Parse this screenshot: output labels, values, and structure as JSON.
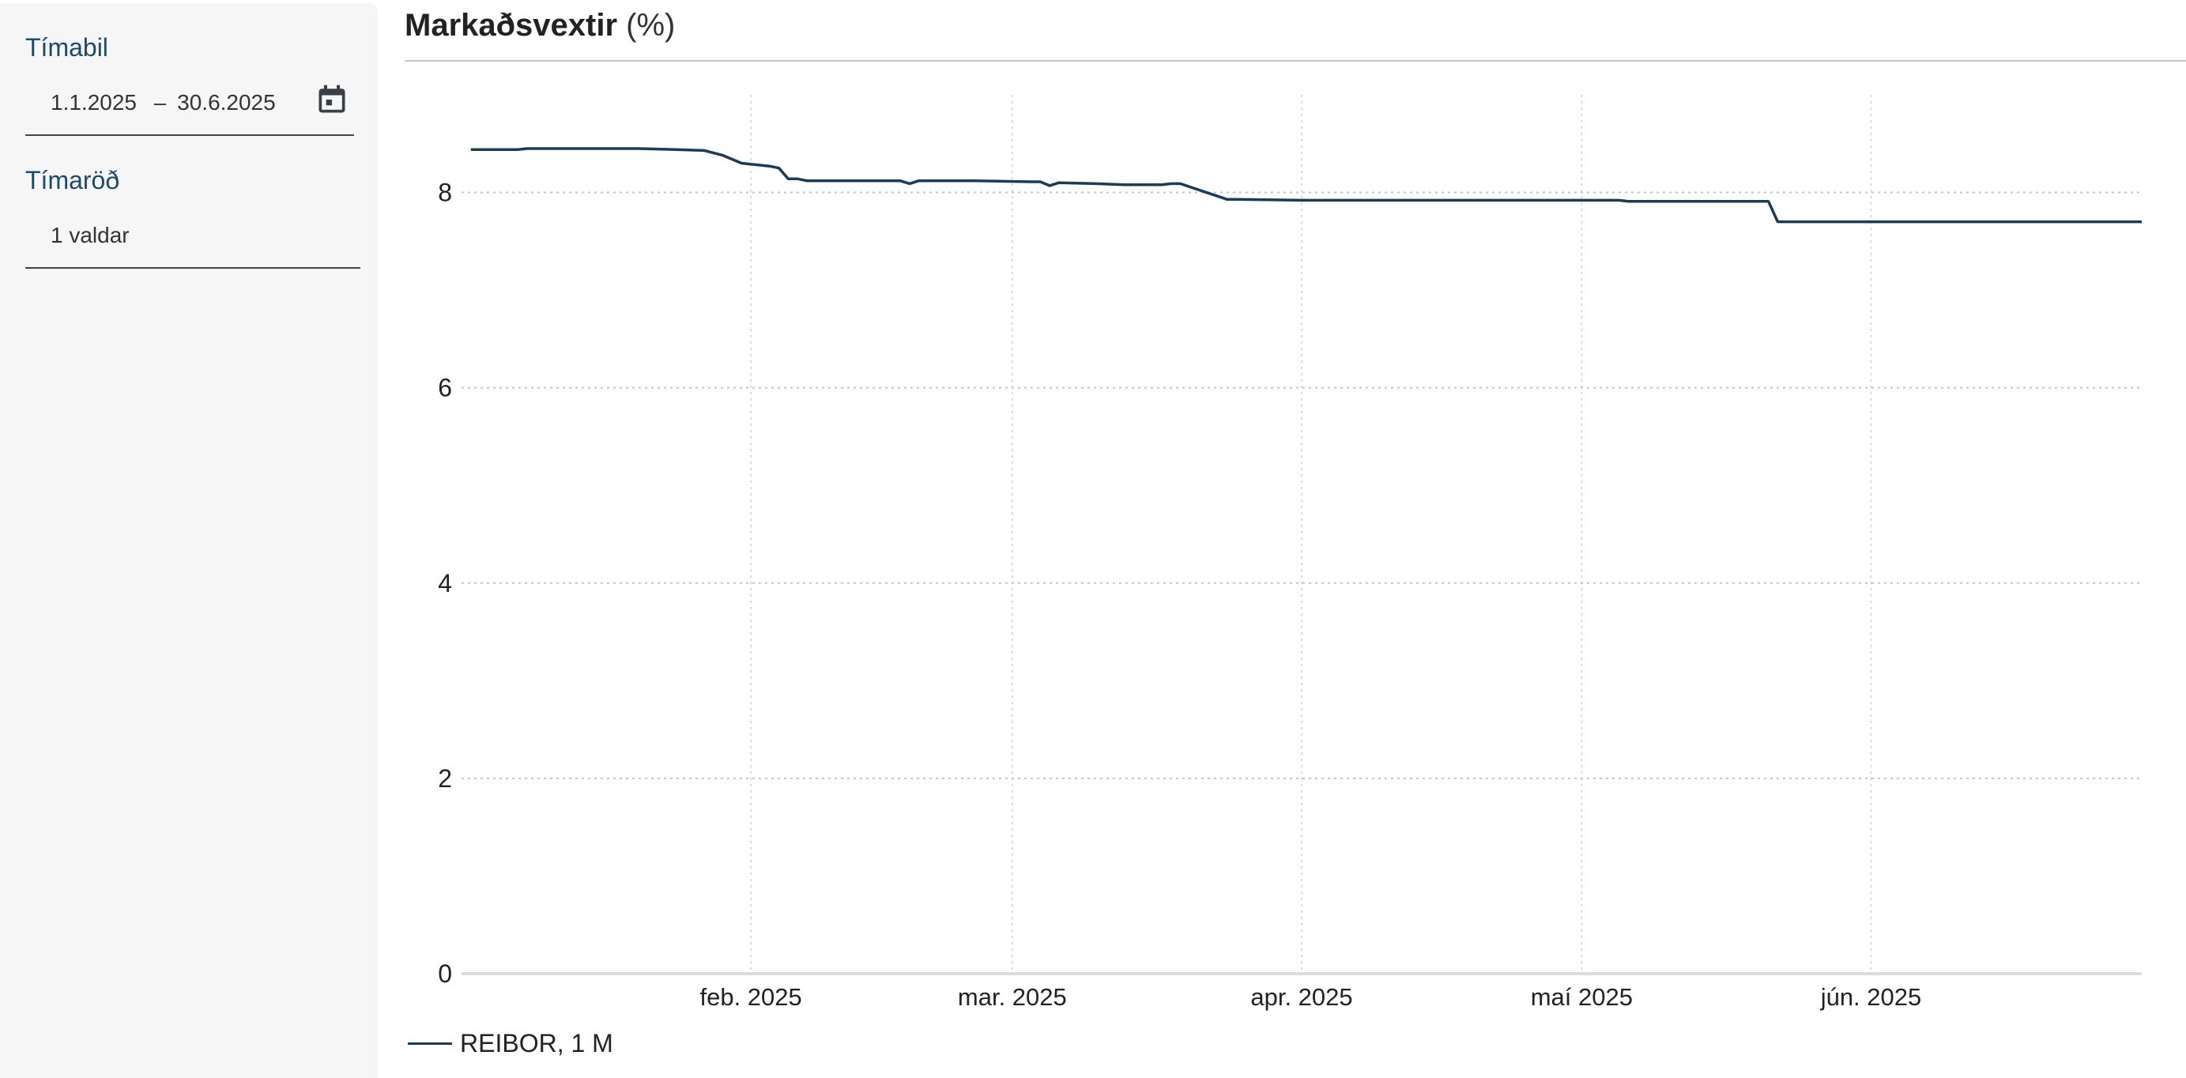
{
  "sidebar": {
    "period_label": "Tímabil",
    "date_from": "1.1.2025",
    "date_sep": "–",
    "date_to": "30.6.2025",
    "series_label": "Tímaröð",
    "series_value": "1 valdar"
  },
  "chart_data": {
    "type": "line",
    "title": "Markaðsvextir",
    "unit": "(%)",
    "xlabel": "",
    "ylabel": "",
    "x_range": [
      "2025-01-01",
      "2025-06-30"
    ],
    "ylim": [
      0,
      9
    ],
    "yticks": [
      "0",
      "2",
      "4",
      "6",
      "8"
    ],
    "xticks": [
      {
        "date": "2025-02-01",
        "label": "feb. 2025"
      },
      {
        "date": "2025-03-01",
        "label": "mar. 2025"
      },
      {
        "date": "2025-04-01",
        "label": "apr. 2025"
      },
      {
        "date": "2025-05-01",
        "label": "maí 2025"
      },
      {
        "date": "2025-06-01",
        "label": "jún. 2025"
      }
    ],
    "grid": true,
    "legend_position": "bottom-left",
    "colors": {
      "series": "#1d3b52",
      "grid": "#d0d0d0",
      "axis": "#dcdcdc"
    },
    "series": [
      {
        "name": "REIBOR, 1 M",
        "x": [
          "2025-01-02",
          "2025-01-07",
          "2025-01-08",
          "2025-01-13",
          "2025-01-17",
          "2025-01-20",
          "2025-01-24",
          "2025-01-27",
          "2025-01-29",
          "2025-01-31",
          "2025-02-03",
          "2025-02-04",
          "2025-02-05",
          "2025-02-06",
          "2025-02-07",
          "2025-02-10",
          "2025-02-11",
          "2025-02-17",
          "2025-02-18",
          "2025-02-19",
          "2025-02-24",
          "2025-02-25",
          "2025-03-03",
          "2025-03-04",
          "2025-03-05",
          "2025-03-06",
          "2025-03-10",
          "2025-03-13",
          "2025-03-14",
          "2025-03-17",
          "2025-03-18",
          "2025-03-19",
          "2025-03-24",
          "2025-03-25",
          "2025-04-01",
          "2025-04-15",
          "2025-05-01",
          "2025-05-05",
          "2025-05-06",
          "2025-05-15",
          "2025-05-20",
          "2025-05-21",
          "2025-05-22",
          "2025-06-30"
        ],
        "y": [
          8.44,
          8.44,
          8.45,
          8.45,
          8.45,
          8.45,
          8.44,
          8.43,
          8.38,
          8.3,
          8.27,
          8.25,
          8.14,
          8.14,
          8.12,
          8.12,
          8.12,
          8.12,
          8.09,
          8.12,
          8.12,
          8.12,
          8.11,
          8.11,
          8.07,
          8.1,
          8.09,
          8.08,
          8.08,
          8.08,
          8.09,
          8.09,
          7.93,
          7.93,
          7.92,
          7.92,
          7.92,
          7.92,
          7.91,
          7.91,
          7.91,
          7.91,
          7.7,
          7.7
        ]
      }
    ]
  }
}
